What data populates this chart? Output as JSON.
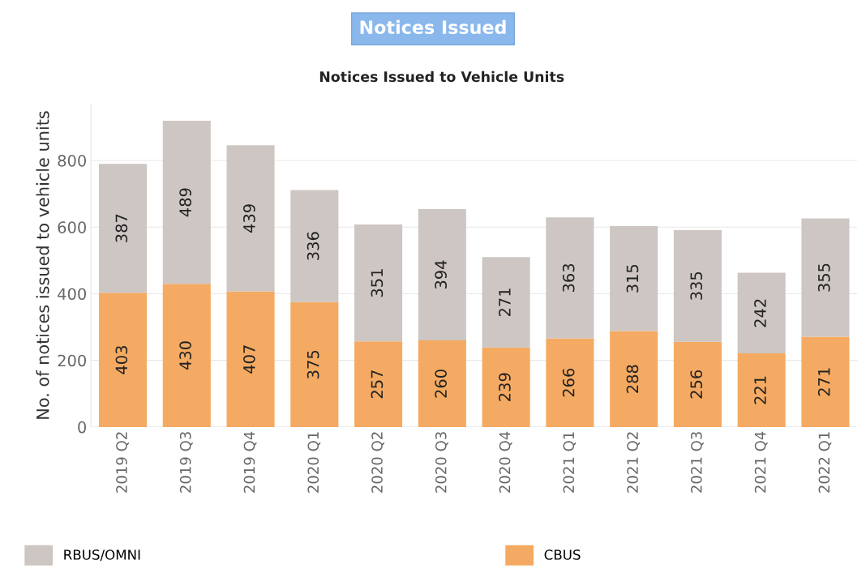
{
  "chart_data": {
    "type": "bar",
    "title": "Notices Issued",
    "subtitle": "Notices Issued to Vehicle Units",
    "ylabel": "No. of notices issued to vehicle units",
    "categories": [
      "2019 Q2",
      "2019 Q3",
      "2019 Q4",
      "2020 Q1",
      "2020 Q2",
      "2020 Q3",
      "2020 Q4",
      "2021 Q1",
      "2021 Q2",
      "2021 Q3",
      "2021 Q4",
      "2022 Q1"
    ],
    "series": [
      {
        "name": "CBUS",
        "color": "#f4aa62",
        "values": [
          403,
          430,
          407,
          375,
          257,
          260,
          239,
          266,
          288,
          256,
          221,
          271
        ]
      },
      {
        "name": "RBUS/OMNI",
        "color": "#cdc6c3",
        "values": [
          387,
          489,
          439,
          336,
          351,
          394,
          271,
          363,
          315,
          335,
          242,
          355
        ]
      }
    ],
    "stacked": true,
    "data_labels": true,
    "ylim": [
      0,
      970
    ],
    "yticks": [
      0,
      200,
      400,
      600,
      800
    ],
    "grid": "y",
    "legend": "bottom"
  }
}
